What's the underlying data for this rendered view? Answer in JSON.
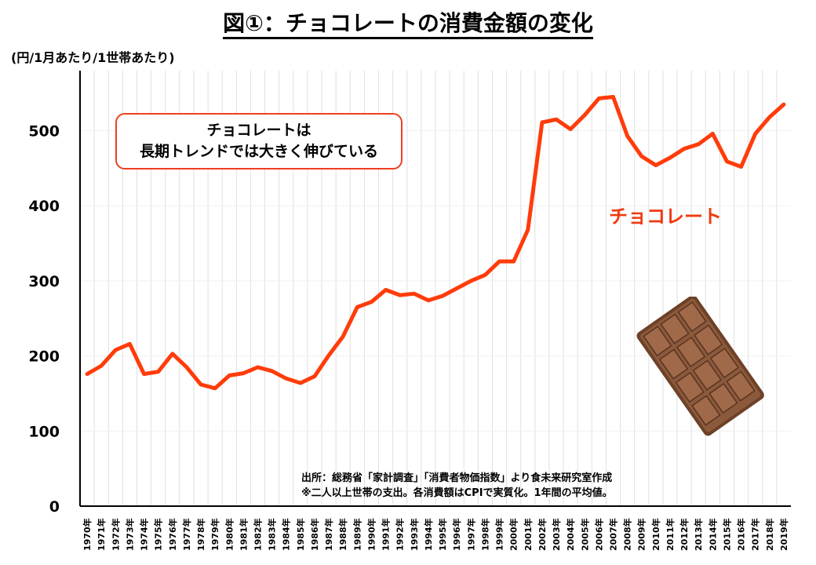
{
  "title": "図①：チョコレートの消費金額の変化",
  "unit_label": "(円/1月あたり/1世帯あたり)",
  "callout": {
    "line1": "チョコレートは",
    "line2": "長期トレンドでは大きく伸びている"
  },
  "source": {
    "line1": "出所：総務省「家計調査」「消費者物価指数」より食未来研究室作成",
    "line2": "※二人以上世帯の支出。各消費額はCPIで実質化。1年間の平均値。"
  },
  "colors": {
    "line": "#ff3c0a",
    "callout_border": "#ee4022",
    "grid": "#e0e0e0",
    "chocolate": "#8b5a3c"
  },
  "icon": "chocolate-bar-icon",
  "chart_data": {
    "type": "line",
    "title": "図①：チョコレートの消費金額の変化",
    "ylabel": "(円/1月あたり/1世帯あたり)",
    "ylim": [
      0,
      580
    ],
    "yticks": [
      0,
      100,
      200,
      300,
      400,
      500
    ],
    "grid": "vertical",
    "categories": [
      "1970年",
      "1971年",
      "1972年",
      "1973年",
      "1974年",
      "1975年",
      "1976年",
      "1977年",
      "1978年",
      "1979年",
      "1980年",
      "1981年",
      "1982年",
      "1983年",
      "1984年",
      "1985年",
      "1986年",
      "1987年",
      "1988年",
      "1989年",
      "1990年",
      "1991年",
      "1992年",
      "1993年",
      "1994年",
      "1995年",
      "1996年",
      "1997年",
      "1998年",
      "1999年",
      "2000年",
      "2001年",
      "2002年",
      "2003年",
      "2004年",
      "2005年",
      "2006年",
      "2007年",
      "2008年",
      "2009年",
      "2010年",
      "2011年",
      "2012年",
      "2013年",
      "2014年",
      "2015年",
      "2016年",
      "2017年",
      "2018年",
      "2019年"
    ],
    "series": [
      {
        "name": "チョコレート",
        "values": [
          176,
          187,
          208,
          216,
          176,
          179,
          203,
          185,
          162,
          157,
          174,
          177,
          185,
          180,
          170,
          164,
          173,
          201,
          226,
          265,
          272,
          288,
          281,
          283,
          274,
          280,
          290,
          300,
          308,
          326,
          326,
          368,
          511,
          515,
          502,
          521,
          543,
          545,
          493,
          466,
          454,
          464,
          476,
          482,
          496,
          459,
          452,
          496,
          518,
          535
        ]
      }
    ]
  }
}
